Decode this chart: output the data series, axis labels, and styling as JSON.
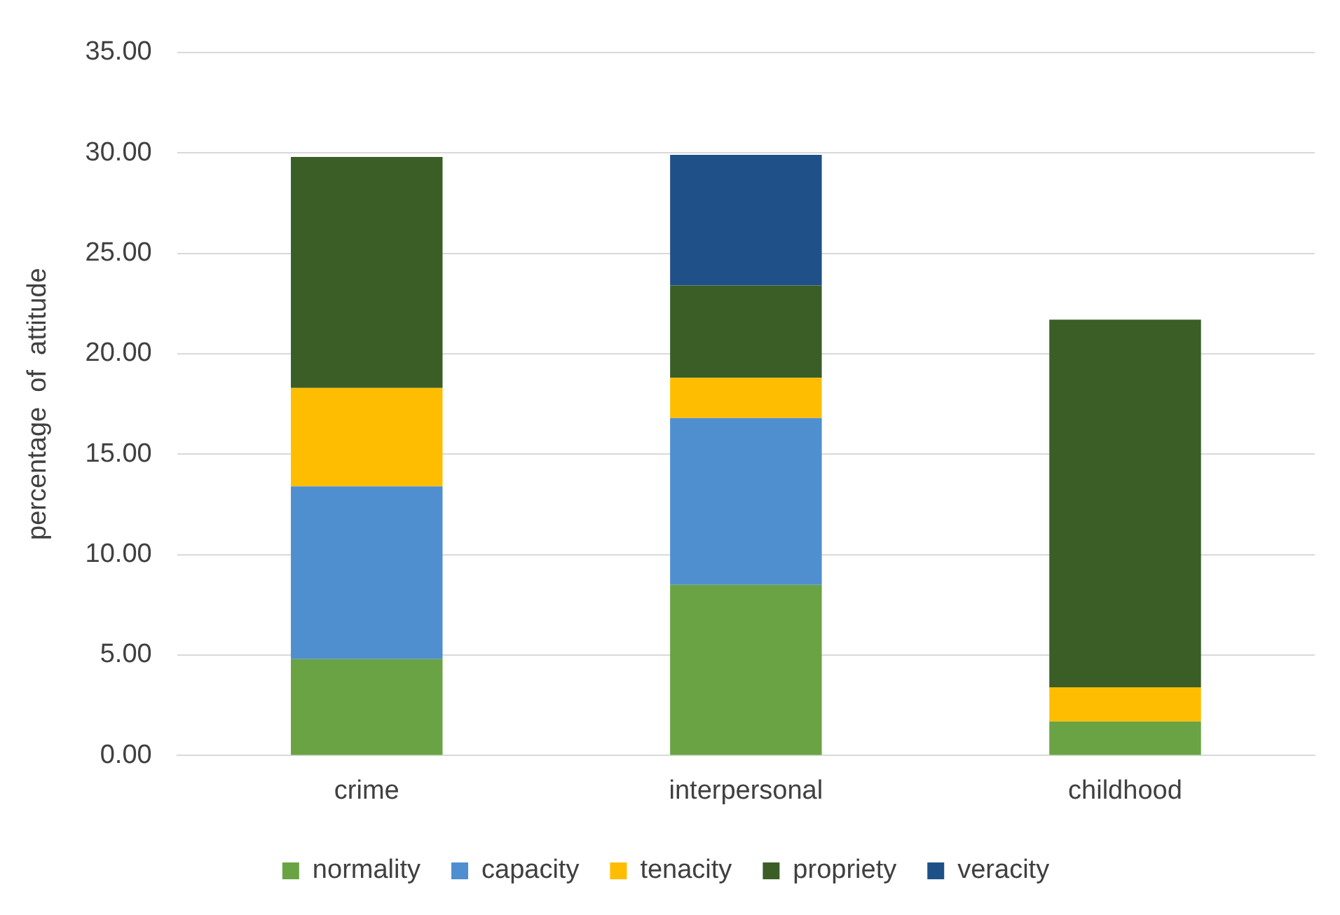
{
  "chart_data": {
    "type": "bar",
    "stacked": true,
    "ylabel": "percentage  of  attitude",
    "categories": [
      "crime",
      "interpersonal",
      "childhood"
    ],
    "series": [
      {
        "name": "normality",
        "color": "#6aa343",
        "values": [
          4.8,
          8.5,
          1.7
        ]
      },
      {
        "name": "capacity",
        "color": "#4f8fd0",
        "values": [
          8.6,
          8.3,
          0
        ]
      },
      {
        "name": "tenacity",
        "color": "#ffbd00",
        "values": [
          4.9,
          2.0,
          1.7
        ]
      },
      {
        "name": "propriety",
        "color": "#3b5e27",
        "values": [
          11.5,
          4.6,
          18.3
        ]
      },
      {
        "name": "veracity",
        "color": "#1f5188",
        "values": [
          0,
          6.5,
          0
        ]
      }
    ],
    "ylim": [
      0,
      35
    ],
    "yticks": [
      {
        "value": 0,
        "label": "0.00"
      },
      {
        "value": 5,
        "label": "5.00"
      },
      {
        "value": 10,
        "label": "10.00"
      },
      {
        "value": 15,
        "label": "15.00"
      },
      {
        "value": 20,
        "label": "20.00"
      },
      {
        "value": 25,
        "label": "25.00"
      },
      {
        "value": 30,
        "label": "30.00"
      },
      {
        "value": 35,
        "label": "35.00"
      }
    ],
    "grid": "y",
    "legend": "bottom"
  }
}
